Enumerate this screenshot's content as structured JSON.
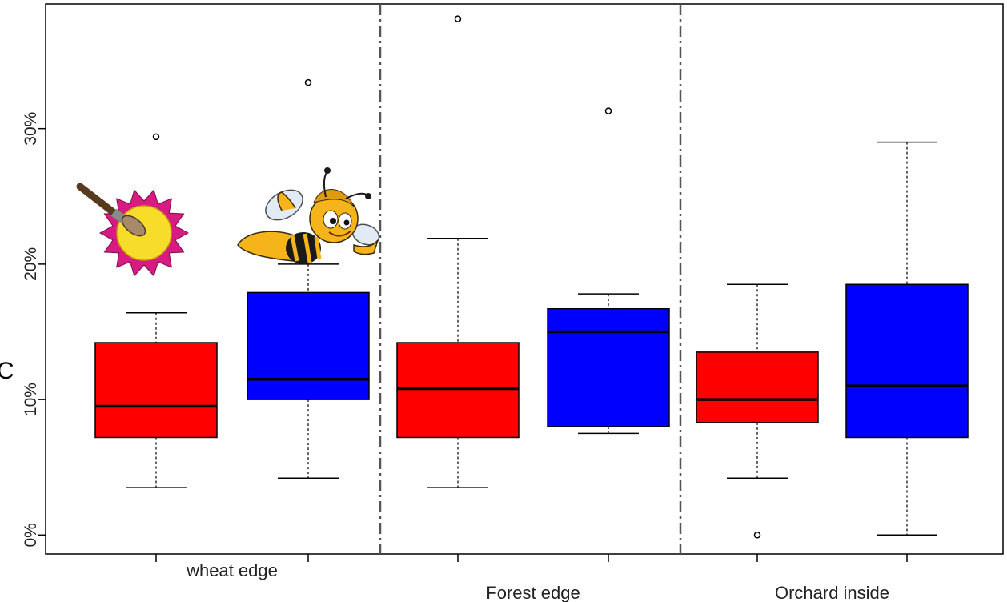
{
  "chart_data": {
    "type": "boxplot",
    "ylim": [
      -1.4,
      39.2
    ],
    "ytick_values": [
      0,
      10,
      20,
      30
    ],
    "ytick_labels": [
      "0%",
      "10%",
      "20%",
      "30%"
    ],
    "groups": [
      "wheat edge",
      "Forest edge",
      "Orchard inside"
    ],
    "series": [
      {
        "color": "#ff0000"
      },
      {
        "color": "#0000ff"
      }
    ],
    "boxes": [
      {
        "group": 0,
        "series": 0,
        "whisker_low": 3.5,
        "q1": 7.2,
        "median": 9.5,
        "q3": 14.2,
        "whisker_high": 16.4,
        "outliers": [
          29.4
        ]
      },
      {
        "group": 0,
        "series": 1,
        "whisker_low": 4.2,
        "q1": 10.0,
        "median": 11.5,
        "q3": 17.9,
        "whisker_high": 20.0,
        "outliers": [
          33.4
        ]
      },
      {
        "group": 1,
        "series": 0,
        "whisker_low": 3.5,
        "q1": 7.2,
        "median": 10.8,
        "q3": 14.2,
        "whisker_high": 21.9,
        "outliers": [
          38.1
        ]
      },
      {
        "group": 1,
        "series": 1,
        "whisker_low": 7.5,
        "q1": 8.0,
        "median": 15.0,
        "q3": 16.7,
        "whisker_high": 17.8,
        "outliers": [
          31.3
        ]
      },
      {
        "group": 2,
        "series": 0,
        "whisker_low": 4.2,
        "q1": 8.3,
        "median": 10.0,
        "q3": 13.5,
        "whisker_high": 18.5,
        "outliers": [
          0.0
        ]
      },
      {
        "group": 2,
        "series": 1,
        "whisker_low": 0.0,
        "q1": 7.2,
        "median": 11.0,
        "q3": 18.5,
        "whisker_high": 29.0,
        "outliers": []
      }
    ],
    "group_separators": true,
    "grid": false,
    "legend": "pictures (flower over red, bee over blue), top-left",
    "stray_text": "C"
  },
  "icons": {
    "flower": "paintbrush-flower-icon",
    "bee": "cartoon-bee-icon"
  },
  "colors": {
    "flower_petals": "#d81b83",
    "flower_center": "#f7dc2a",
    "bee_body": "#f5b41a"
  }
}
